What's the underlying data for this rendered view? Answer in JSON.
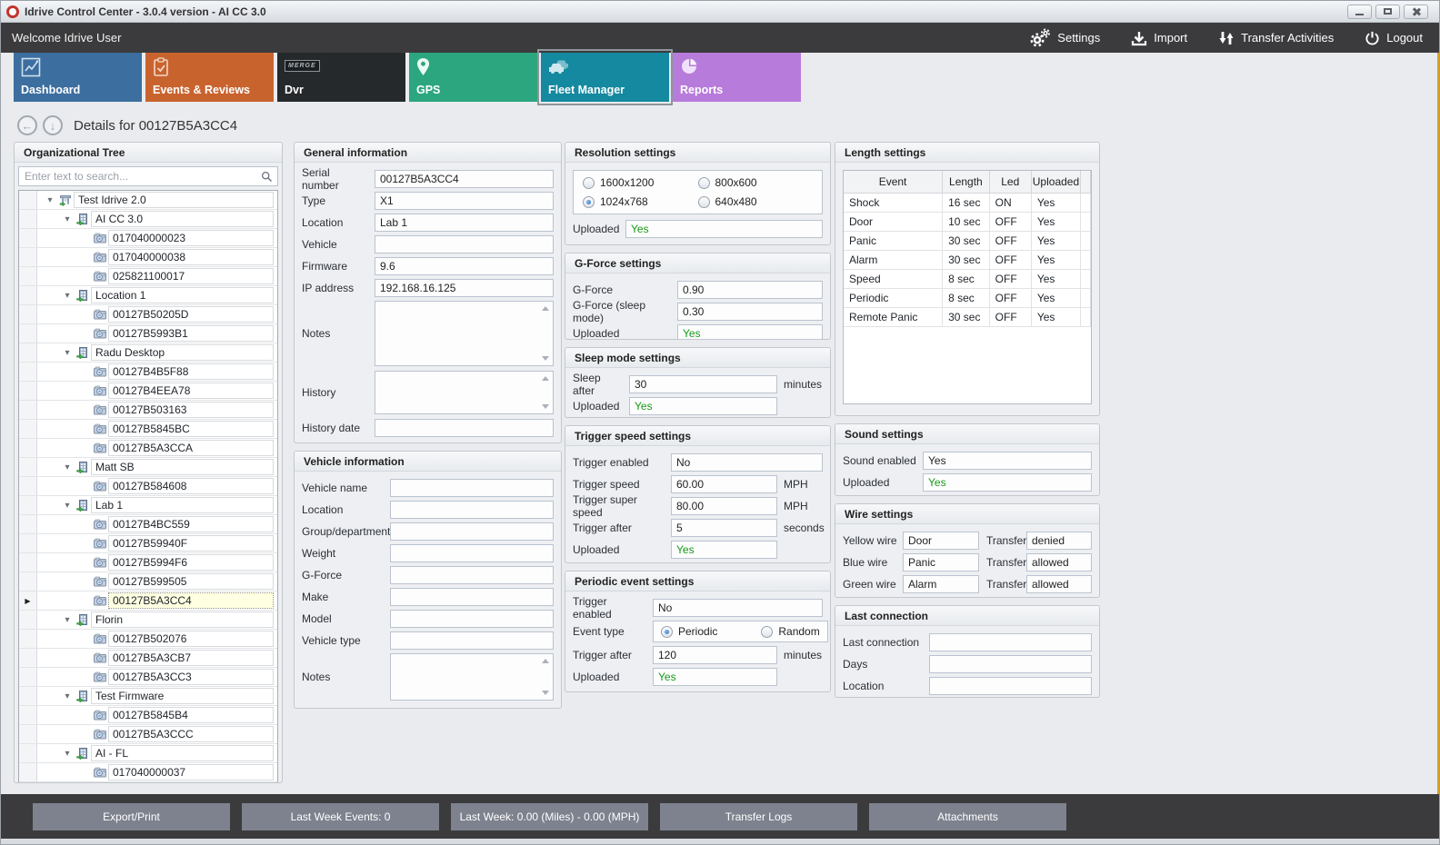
{
  "window": {
    "title": "Idrive Control Center - 3.0.4 version - AI CC 3.0"
  },
  "icons": {
    "caret_down": "▾",
    "row_pointer": "▶",
    "back_arrow": "←",
    "down_arrow": "↓"
  },
  "topbar": {
    "welcome": "Welcome Idrive User",
    "actions": [
      {
        "label": "Settings"
      },
      {
        "label": "Import"
      },
      {
        "label": "Transfer Activities"
      },
      {
        "label": "Logout"
      }
    ]
  },
  "tiles": [
    {
      "label": "Dashboard",
      "color": "#3c6e9f",
      "selected": false
    },
    {
      "label": "Events & Reviews",
      "color": "#c9632e",
      "selected": false
    },
    {
      "label": "Dvr",
      "color": "#26292c",
      "badge": "MERGE",
      "selected": false
    },
    {
      "label": "GPS",
      "color": "#2ca67e",
      "selected": false
    },
    {
      "label": "Fleet Manager",
      "color": "#1489a0",
      "selected": true
    },
    {
      "label": "Reports",
      "color": "#b77bdb",
      "selected": false
    }
  ],
  "details": {
    "title": "Details for 00127B5A3CC4"
  },
  "tree": {
    "title": "Organizational Tree",
    "search_placeholder": "Enter text to search...",
    "nodes": [
      {
        "label": "Test Idrive 2.0",
        "depth": 0,
        "type": "root"
      },
      {
        "label": "AI CC 3.0",
        "depth": 1,
        "type": "group"
      },
      {
        "label": "017040000023",
        "depth": 2,
        "type": "device"
      },
      {
        "label": "017040000038",
        "depth": 2,
        "type": "device"
      },
      {
        "label": "025821100017",
        "depth": 2,
        "type": "device"
      },
      {
        "label": "Location 1",
        "depth": 1,
        "type": "group"
      },
      {
        "label": "00127B50205D",
        "depth": 2,
        "type": "device"
      },
      {
        "label": "00127B5993B1",
        "depth": 2,
        "type": "device"
      },
      {
        "label": "Radu Desktop",
        "depth": 1,
        "type": "group"
      },
      {
        "label": "00127B4B5F88",
        "depth": 2,
        "type": "device"
      },
      {
        "label": "00127B4EEA78",
        "depth": 2,
        "type": "device"
      },
      {
        "label": "00127B503163",
        "depth": 2,
        "type": "device"
      },
      {
        "label": "00127B5845BC",
        "depth": 2,
        "type": "device"
      },
      {
        "label": "00127B5A3CCA",
        "depth": 2,
        "type": "device"
      },
      {
        "label": "Matt SB",
        "depth": 1,
        "type": "group"
      },
      {
        "label": "00127B584608",
        "depth": 2,
        "type": "device"
      },
      {
        "label": "Lab 1",
        "depth": 1,
        "type": "group"
      },
      {
        "label": "00127B4BC559",
        "depth": 2,
        "type": "device"
      },
      {
        "label": "00127B59940F",
        "depth": 2,
        "type": "device"
      },
      {
        "label": "00127B5994F6",
        "depth": 2,
        "type": "device"
      },
      {
        "label": "00127B599505",
        "depth": 2,
        "type": "device"
      },
      {
        "label": "00127B5A3CC4",
        "depth": 2,
        "type": "device",
        "selected": true
      },
      {
        "label": "Florin",
        "depth": 1,
        "type": "group"
      },
      {
        "label": "00127B502076",
        "depth": 2,
        "type": "device"
      },
      {
        "label": "00127B5A3CB7",
        "depth": 2,
        "type": "device"
      },
      {
        "label": "00127B5A3CC3",
        "depth": 2,
        "type": "device"
      },
      {
        "label": "Test Firmware",
        "depth": 1,
        "type": "group"
      },
      {
        "label": "00127B5845B4",
        "depth": 2,
        "type": "device"
      },
      {
        "label": "00127B5A3CCC",
        "depth": 2,
        "type": "device"
      },
      {
        "label": "AI - FL",
        "depth": 1,
        "type": "group"
      },
      {
        "label": "017040000037",
        "depth": 2,
        "type": "device"
      }
    ]
  },
  "general": {
    "title": "General information",
    "fields": [
      {
        "label": "Serial number",
        "value": "00127B5A3CC4"
      },
      {
        "label": "Type",
        "value": "X1"
      },
      {
        "label": "Location",
        "value": "Lab 1"
      },
      {
        "label": "Vehicle",
        "value": ""
      },
      {
        "label": "Firmware",
        "value": "9.6"
      },
      {
        "label": "IP address",
        "value": "192.168.16.125"
      }
    ],
    "notes_label": "Notes",
    "history_label": "History",
    "history_date_label": "History date",
    "history_date_value": ""
  },
  "vehicle": {
    "title": "Vehicle information",
    "fields": [
      {
        "label": "Vehicle name",
        "value": ""
      },
      {
        "label": "Location",
        "value": ""
      },
      {
        "label": "Group/department",
        "value": ""
      },
      {
        "label": "Weight",
        "value": ""
      },
      {
        "label": "G-Force",
        "value": ""
      },
      {
        "label": "Make",
        "value": ""
      },
      {
        "label": "Model",
        "value": ""
      },
      {
        "label": "Vehicle type",
        "value": ""
      }
    ],
    "notes_label": "Notes"
  },
  "resolution": {
    "title": "Resolution settings",
    "options": [
      {
        "label": "1600x1200",
        "selected": false
      },
      {
        "label": "800x600",
        "selected": false
      },
      {
        "label": "1024x768",
        "selected": true
      },
      {
        "label": "640x480",
        "selected": false
      }
    ],
    "uploaded_label": "Uploaded",
    "uploaded_value": "Yes"
  },
  "gforce": {
    "title": "G-Force settings",
    "rows": [
      {
        "label": "G-Force",
        "value": "0.90"
      },
      {
        "label": "G-Force (sleep mode)",
        "value": "0.30"
      }
    ],
    "uploaded_label": "Uploaded",
    "uploaded_value": "Yes"
  },
  "sleep": {
    "title": "Sleep mode settings",
    "row": {
      "label": "Sleep after",
      "value": "30",
      "unit": "minutes"
    },
    "uploaded_label": "Uploaded",
    "uploaded_value": "Yes"
  },
  "trigger": {
    "title": "Trigger speed settings",
    "rows": [
      {
        "label": "Trigger enabled",
        "value": "No",
        "unit": ""
      },
      {
        "label": "Trigger speed",
        "value": "60.00",
        "unit": "MPH"
      },
      {
        "label": "Trigger super speed",
        "value": "80.00",
        "unit": "MPH"
      },
      {
        "label": "Trigger after",
        "value": "5",
        "unit": "seconds"
      }
    ],
    "uploaded_label": "Uploaded",
    "uploaded_value": "Yes"
  },
  "periodic": {
    "title": "Periodic event settings",
    "enabled_label": "Trigger enabled",
    "enabled_value": "No",
    "event_type_label": "Event type",
    "event_options": [
      {
        "label": "Periodic",
        "selected": true
      },
      {
        "label": "Random",
        "selected": false
      }
    ],
    "after_label": "Trigger after",
    "after_value": "120",
    "after_unit": "minutes",
    "uploaded_label": "Uploaded",
    "uploaded_value": "Yes"
  },
  "length": {
    "title": "Length settings",
    "columns": [
      "Event",
      "Length",
      "Led",
      "Uploaded"
    ],
    "rows": [
      [
        "Shock",
        "16 sec",
        "ON",
        "Yes"
      ],
      [
        "Door",
        "10 sec",
        "OFF",
        "Yes"
      ],
      [
        "Panic",
        "30 sec",
        "OFF",
        "Yes"
      ],
      [
        "Alarm",
        "30 sec",
        "OFF",
        "Yes"
      ],
      [
        "Speed",
        "8 sec",
        "OFF",
        "Yes"
      ],
      [
        "Periodic",
        "8 sec",
        "OFF",
        "Yes"
      ],
      [
        "Remote Panic",
        "30 sec",
        "OFF",
        "Yes"
      ]
    ]
  },
  "sound": {
    "title": "Sound settings",
    "rows": [
      {
        "label": "Sound enabled",
        "value": "Yes",
        "green": false
      },
      {
        "label": "Uploaded",
        "value": "Yes",
        "green": true
      }
    ]
  },
  "wire": {
    "title": "Wire settings",
    "rows": [
      {
        "label": "Yellow wire",
        "value": "Door",
        "transfer_label": "Transfer",
        "transfer_value": "denied"
      },
      {
        "label": "Blue wire",
        "value": "Panic",
        "transfer_label": "Transfer",
        "transfer_value": "allowed"
      },
      {
        "label": "Green wire",
        "value": "Alarm",
        "transfer_label": "Transfer",
        "transfer_value": "allowed"
      }
    ]
  },
  "last_connection": {
    "title": "Last connection",
    "rows": [
      {
        "label": "Last connection",
        "value": ""
      },
      {
        "label": "Days",
        "value": ""
      },
      {
        "label": "Location",
        "value": ""
      }
    ]
  },
  "bottom": {
    "buttons": [
      "Export/Print",
      "Last Week Events: 0",
      "Last Week: 0.00 (Miles) - 0.00 (MPH)",
      "Transfer Logs",
      "Attachments"
    ]
  }
}
